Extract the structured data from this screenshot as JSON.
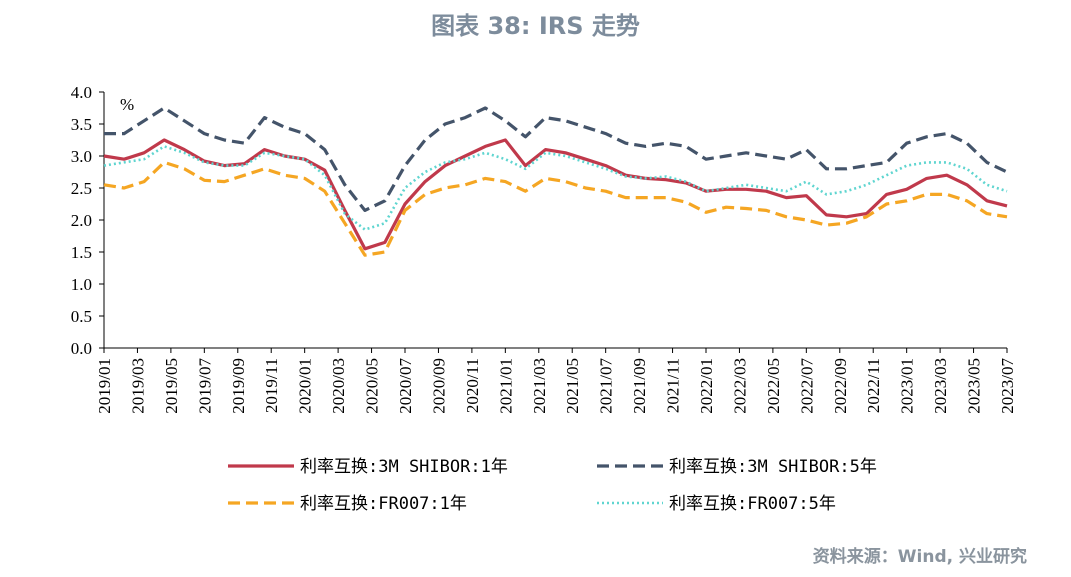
{
  "title": "图表 38: IRS 走势",
  "source": "资料来源：Wind, 兴业研究",
  "chart_data": {
    "type": "line",
    "unit": "%",
    "ylim": [
      0.0,
      4.0
    ],
    "y_ticks": [
      "4.0",
      "3.5",
      "3.0",
      "2.5",
      "2.0",
      "1.5",
      "1.0",
      "0.5",
      "0.0"
    ],
    "x_ticks": [
      "2019/01",
      "2019/03",
      "2019/05",
      "2019/07",
      "2019/09",
      "2019/11",
      "2020/01",
      "2020/03",
      "2020/05",
      "2020/07",
      "2020/09",
      "2020/11",
      "2021/01",
      "2021/03",
      "2021/05",
      "2021/07",
      "2021/09",
      "2021/11",
      "2022/01",
      "2022/03",
      "2022/05",
      "2022/07",
      "2022/09",
      "2022/11",
      "2023/01",
      "2023/03",
      "2023/05",
      "2023/07"
    ],
    "grid": false,
    "legend_position": "bottom",
    "series": [
      {
        "name": "利率互换:3M SHIBOR:1年",
        "color": "#C0394B",
        "style": "solid",
        "values": [
          3.0,
          2.95,
          3.05,
          3.25,
          3.1,
          2.92,
          2.85,
          2.88,
          3.1,
          3.0,
          2.95,
          2.78,
          2.15,
          1.55,
          1.65,
          2.25,
          2.6,
          2.85,
          3.0,
          3.15,
          3.25,
          2.85,
          3.1,
          3.05,
          2.95,
          2.85,
          2.7,
          2.65,
          2.63,
          2.58,
          2.45,
          2.48,
          2.48,
          2.45,
          2.35,
          2.38,
          2.08,
          2.05,
          2.1,
          2.4,
          2.48,
          2.65,
          2.7,
          2.55,
          2.3,
          2.22
        ]
      },
      {
        "name": "利率互换:3M SHIBOR:5年",
        "color": "#44546A",
        "style": "dashed",
        "values": [
          3.35,
          3.35,
          3.55,
          3.75,
          3.55,
          3.35,
          3.25,
          3.2,
          3.6,
          3.45,
          3.35,
          3.1,
          2.55,
          2.15,
          2.3,
          2.85,
          3.25,
          3.5,
          3.6,
          3.75,
          3.55,
          3.3,
          3.6,
          3.55,
          3.45,
          3.35,
          3.2,
          3.15,
          3.2,
          3.15,
          2.95,
          3.0,
          3.05,
          3.0,
          2.95,
          3.1,
          2.8,
          2.8,
          2.85,
          2.9,
          3.2,
          3.3,
          3.35,
          3.2,
          2.9,
          2.75
        ]
      },
      {
        "name": "利率互换:FR007:1年",
        "color": "#F5A623",
        "style": "dashed",
        "values": [
          2.55,
          2.5,
          2.6,
          2.9,
          2.8,
          2.62,
          2.6,
          2.7,
          2.8,
          2.7,
          2.65,
          2.45,
          1.95,
          1.45,
          1.5,
          2.15,
          2.4,
          2.5,
          2.55,
          2.65,
          2.6,
          2.45,
          2.65,
          2.6,
          2.5,
          2.45,
          2.35,
          2.35,
          2.35,
          2.28,
          2.12,
          2.2,
          2.18,
          2.15,
          2.05,
          2.0,
          1.92,
          1.95,
          2.05,
          2.25,
          2.3,
          2.4,
          2.4,
          2.3,
          2.1,
          2.05
        ]
      },
      {
        "name": "利率互换:FR007:5年",
        "color": "#5FD5D0",
        "style": "dotted",
        "values": [
          2.85,
          2.9,
          2.95,
          3.15,
          3.05,
          2.9,
          2.85,
          2.85,
          3.05,
          3.0,
          2.95,
          2.7,
          2.1,
          1.85,
          1.95,
          2.5,
          2.75,
          2.9,
          2.95,
          3.05,
          2.95,
          2.8,
          3.05,
          3.0,
          2.9,
          2.8,
          2.68,
          2.65,
          2.68,
          2.6,
          2.45,
          2.5,
          2.55,
          2.5,
          2.45,
          2.6,
          2.4,
          2.45,
          2.55,
          2.7,
          2.85,
          2.9,
          2.9,
          2.8,
          2.55,
          2.45
        ]
      }
    ]
  }
}
